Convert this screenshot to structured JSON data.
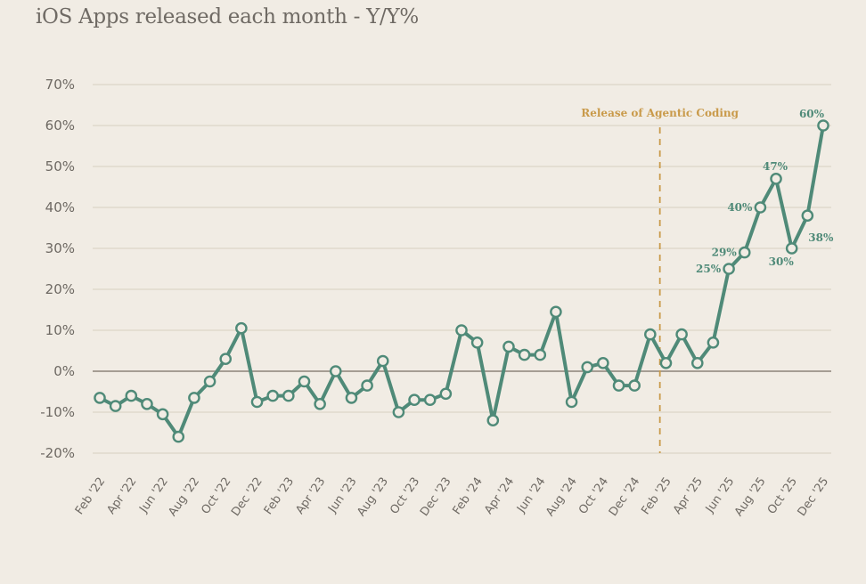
{
  "chart_data": {
    "type": "line",
    "title": "iOS Apps released each month - Y/Y%",
    "xlabel": "",
    "ylabel": "",
    "ylim": [
      -20,
      70
    ],
    "yticks": [
      -20,
      -10,
      0,
      10,
      20,
      30,
      40,
      50,
      60,
      70
    ],
    "ytick_labels": [
      "-20%",
      "-10%",
      "0%",
      "10%",
      "20%",
      "30%",
      "40%",
      "50%",
      "60%",
      "70%"
    ],
    "grid": true,
    "tick_labels": [
      "Feb '22",
      "Apr '22",
      "Jun '22",
      "Aug '22",
      "Oct '22",
      "Dec '22",
      "Feb '23",
      "Apr '23",
      "Jun '23",
      "Aug '23",
      "Oct '23",
      "Dec '23",
      "Feb '24",
      "Apr '24",
      "Jun '24",
      "Aug '24",
      "Oct '24",
      "Dec '24",
      "Feb '25",
      "Apr '25",
      "Jun '25",
      "Aug '25",
      "Oct '25",
      "Dec '25"
    ],
    "series": [
      {
        "name": "Y/Y%",
        "color": "#4f8a78",
        "values": [
          -6.5,
          -8.5,
          -6,
          -8,
          -10.5,
          -16,
          -6.5,
          -2.5,
          3,
          10.5,
          -7.5,
          -6,
          -6,
          -2.5,
          -8,
          0,
          -6.5,
          -3.5,
          2.5,
          -10,
          -7,
          -7,
          -5.5,
          10,
          7,
          -12,
          6,
          4,
          4,
          14.5,
          -7.5,
          1,
          2,
          -3.5,
          -3.5,
          9,
          2,
          9,
          2,
          7,
          25,
          29,
          40,
          47,
          30,
          38,
          60
        ]
      }
    ],
    "data_labels": [
      {
        "index": 40,
        "text": "25%",
        "pos": "left"
      },
      {
        "index": 41,
        "text": "29%",
        "pos": "left"
      },
      {
        "index": 42,
        "text": "40%",
        "pos": "left"
      },
      {
        "index": 43,
        "text": "47%",
        "pos": "above"
      },
      {
        "index": 44,
        "text": "30%",
        "pos": "below-left"
      },
      {
        "index": 45,
        "text": "38%",
        "pos": "below-right"
      },
      {
        "index": 46,
        "text": "60%",
        "pos": "above-left"
      }
    ],
    "annotation": {
      "text": "Release of Agentic Coding",
      "index": 36,
      "color": "#c99a4a"
    }
  }
}
